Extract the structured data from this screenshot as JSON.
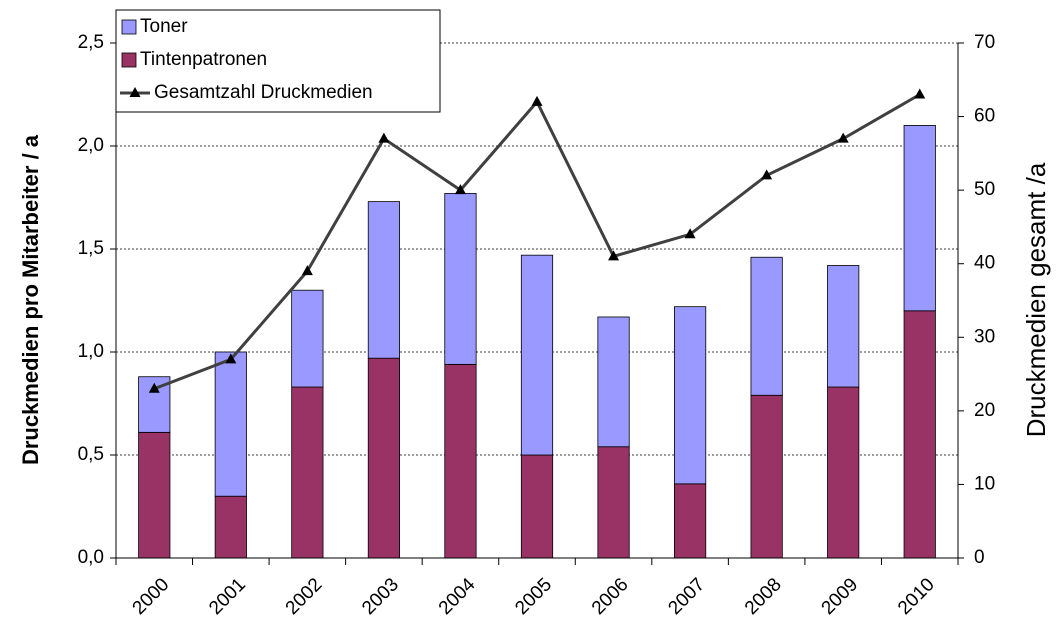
{
  "chart_data": {
    "type": "bar",
    "stacked": true,
    "categories": [
      "2000",
      "2001",
      "2002",
      "2003",
      "2004",
      "2005",
      "2006",
      "2007",
      "2008",
      "2009",
      "2010"
    ],
    "series": [
      {
        "name": "Toner",
        "color": "#9999ff",
        "type": "bar",
        "values": [
          0.27,
          0.7,
          0.47,
          0.76,
          0.83,
          0.97,
          0.63,
          0.86,
          0.67,
          0.59,
          0.9
        ]
      },
      {
        "name": "Tintenpatronen",
        "color": "#993366",
        "type": "bar",
        "values": [
          0.61,
          0.3,
          0.83,
          0.97,
          0.94,
          0.5,
          0.54,
          0.36,
          0.79,
          0.83,
          1.2
        ]
      },
      {
        "name": "Gesamtzahl Druckmedien",
        "color": "#404040",
        "type": "line",
        "axis": "y2",
        "marker": "triangle",
        "values": [
          23,
          27,
          39,
          57,
          50,
          62,
          41,
          44,
          52,
          57,
          63
        ]
      }
    ],
    "y_label": "Druckmedien pro Mitarbeiter / a",
    "y2_label": "Druckmedien gesamt /a",
    "ylim": [
      0,
      2.5
    ],
    "yticks": [
      {
        "value": 0,
        "label": "0,0"
      },
      {
        "value": 0.5,
        "label": "0,5"
      },
      {
        "value": 1,
        "label": "1,0"
      },
      {
        "value": 1.5,
        "label": "1,5"
      },
      {
        "value": 2,
        "label": "2,0"
      },
      {
        "value": 2.5,
        "label": "2,5"
      }
    ],
    "y2lim": [
      0,
      70
    ],
    "y2ticks": [
      0,
      10,
      20,
      30,
      40,
      50,
      60,
      70
    ],
    "grid": true,
    "legend": "top-left"
  }
}
